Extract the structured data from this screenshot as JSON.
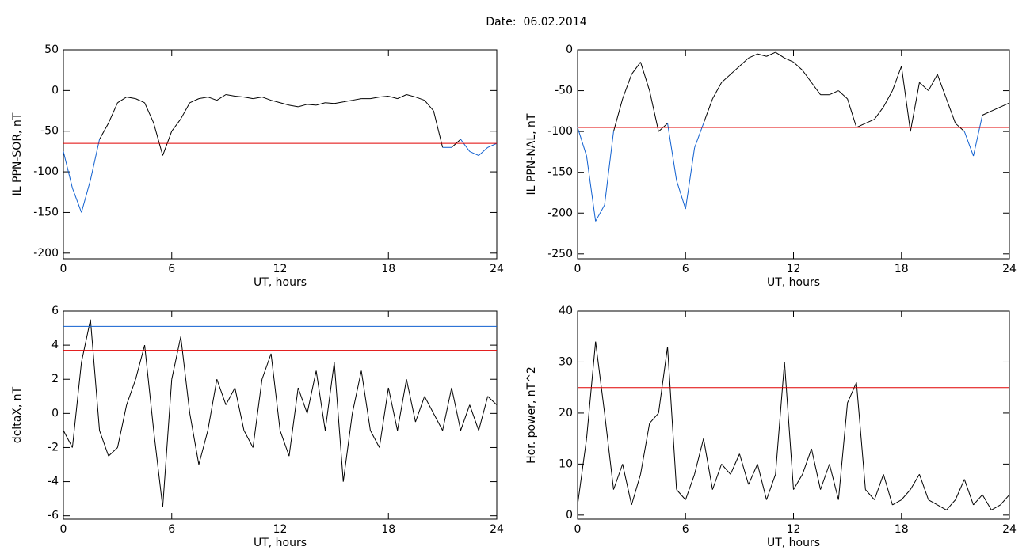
{
  "title": "Date:  06.02.2014",
  "chart_data": [
    {
      "type": "line",
      "ylabel": "IL PPN-SOR, nT",
      "xlabel": "UT, hours",
      "x": [
        0,
        0.5,
        1,
        1.5,
        2,
        2.5,
        3,
        3.5,
        4,
        4.5,
        5,
        5.5,
        6,
        6.5,
        7,
        7.5,
        8,
        8.5,
        9,
        9.5,
        10,
        10.5,
        11,
        11.5,
        12,
        12.5,
        13,
        13.5,
        14,
        14.5,
        15,
        15.5,
        16,
        16.5,
        17,
        17.5,
        18,
        18.5,
        19,
        19.5,
        20,
        20.5,
        21,
        21.5,
        22,
        22.5,
        23,
        23.5,
        24
      ],
      "values": [
        -75,
        -120,
        -150,
        -110,
        -60,
        -40,
        -15,
        -8,
        -10,
        -15,
        -40,
        -80,
        -50,
        -35,
        -15,
        -10,
        -8,
        -12,
        -5,
        -7,
        -8,
        -10,
        -8,
        -12,
        -15,
        -18,
        -20,
        -17,
        -18,
        -15,
        -16,
        -14,
        -12,
        -10,
        -10,
        -8,
        -7,
        -10,
        -5,
        -8,
        -12,
        -25,
        -70,
        -70,
        -60,
        -75,
        -80,
        -70,
        -65
      ],
      "color": "#000000",
      "below_color": "#1060d0",
      "thresholds": [
        {
          "value": -65,
          "color": "#e00000"
        }
      ],
      "xlim": [
        0,
        24
      ],
      "xticks": [
        0,
        6,
        12,
        18,
        24
      ],
      "ylim": [
        -207,
        50
      ],
      "yticks": [
        50,
        0,
        -50,
        -100,
        -150,
        -200
      ]
    },
    {
      "type": "line",
      "ylabel": "IL PPN-NAL, nT",
      "xlabel": "UT, hours",
      "x": [
        0,
        0.5,
        1,
        1.5,
        2,
        2.5,
        3,
        3.5,
        4,
        4.5,
        5,
        5.5,
        6,
        6.5,
        7,
        7.5,
        8,
        8.5,
        9,
        9.5,
        10,
        10.5,
        11,
        11.5,
        12,
        12.5,
        13,
        13.5,
        14,
        14.5,
        15,
        15.5,
        16,
        16.5,
        17,
        17.5,
        18,
        18.5,
        19,
        19.5,
        20,
        20.5,
        21,
        21.5,
        22,
        22.5,
        23,
        23.5,
        24
      ],
      "values": [
        -95,
        -130,
        -210,
        -190,
        -100,
        -60,
        -30,
        -15,
        -50,
        -100,
        -90,
        -160,
        -195,
        -120,
        -90,
        -60,
        -40,
        -30,
        -20,
        -10,
        -5,
        -8,
        -3,
        -10,
        -15,
        -25,
        -40,
        -55,
        -55,
        -50,
        -60,
        -95,
        -90,
        -85,
        -70,
        -50,
        -20,
        -100,
        -40,
        -50,
        -30,
        -60,
        -90,
        -100,
        -130,
        -80,
        -75,
        -70,
        -65
      ],
      "color": "#000000",
      "below_color": "#1060d0",
      "thresholds": [
        {
          "value": -95,
          "color": "#e00000"
        }
      ],
      "xlim": [
        0,
        24
      ],
      "xticks": [
        0,
        6,
        12,
        18,
        24
      ],
      "ylim": [
        -256,
        0
      ],
      "yticks": [
        0,
        -50,
        -100,
        -150,
        -200,
        -250
      ]
    },
    {
      "type": "line",
      "ylabel": "deltaX, nT",
      "xlabel": "UT, hours",
      "x": [
        0,
        0.5,
        1,
        1.5,
        2,
        2.5,
        3,
        3.5,
        4,
        4.5,
        5,
        5.5,
        6,
        6.5,
        7,
        7.5,
        8,
        8.5,
        9,
        9.5,
        10,
        10.5,
        11,
        11.5,
        12,
        12.5,
        13,
        13.5,
        14,
        14.5,
        15,
        15.5,
        16,
        16.5,
        17,
        17.5,
        18,
        18.5,
        19,
        19.5,
        20,
        20.5,
        21,
        21.5,
        22,
        22.5,
        23,
        23.5,
        24
      ],
      "values": [
        -1,
        -2,
        3,
        5.5,
        -1,
        -2.5,
        -2,
        0.5,
        2,
        4,
        -1,
        -5.5,
        2,
        4.5,
        0,
        -3,
        -1,
        2,
        0.5,
        1.5,
        -1,
        -2,
        2,
        3.5,
        -1,
        -2.5,
        1.5,
        0,
        2.5,
        -1,
        3,
        -4,
        0,
        2.5,
        -1,
        -2,
        1.5,
        -1,
        2,
        -0.5,
        1,
        0,
        -1,
        1.5,
        -1,
        0.5,
        -1,
        1,
        0.5
      ],
      "color": "#000000",
      "thresholds": [
        {
          "value": 5.1,
          "color": "#1060d0"
        },
        {
          "value": 3.7,
          "color": "#e00000"
        }
      ],
      "xlim": [
        0,
        24
      ],
      "xticks": [
        0,
        6,
        12,
        18,
        24
      ],
      "ylim": [
        -6.2,
        6
      ],
      "yticks": [
        6,
        4,
        2,
        0,
        -2,
        -4,
        -6
      ]
    },
    {
      "type": "line",
      "ylabel": "Hor. power, nT^2",
      "xlabel": "UT, hours",
      "x": [
        0,
        0.5,
        1,
        1.5,
        2,
        2.5,
        3,
        3.5,
        4,
        4.5,
        5,
        5.5,
        6,
        6.5,
        7,
        7.5,
        8,
        8.5,
        9,
        9.5,
        10,
        10.5,
        11,
        11.5,
        12,
        12.5,
        13,
        13.5,
        14,
        14.5,
        15,
        15.5,
        16,
        16.5,
        17,
        17.5,
        18,
        18.5,
        19,
        19.5,
        20,
        20.5,
        21,
        21.5,
        22,
        22.5,
        23,
        23.5,
        24
      ],
      "values": [
        2,
        15,
        34,
        20,
        5,
        10,
        2,
        8,
        18,
        20,
        33,
        5,
        3,
        8,
        15,
        5,
        10,
        8,
        12,
        6,
        10,
        3,
        8,
        30,
        5,
        8,
        13,
        5,
        10,
        3,
        22,
        26,
        5,
        3,
        8,
        2,
        3,
        5,
        8,
        3,
        2,
        1,
        3,
        7,
        2,
        4,
        1,
        2,
        4
      ],
      "color": "#000000",
      "thresholds": [
        {
          "value": 25,
          "color": "#e00000"
        }
      ],
      "xlim": [
        0,
        24
      ],
      "xticks": [
        0,
        6,
        12,
        18,
        24
      ],
      "ylim": [
        -0.8,
        40
      ],
      "yticks": [
        40,
        30,
        20,
        10,
        0
      ]
    }
  ]
}
